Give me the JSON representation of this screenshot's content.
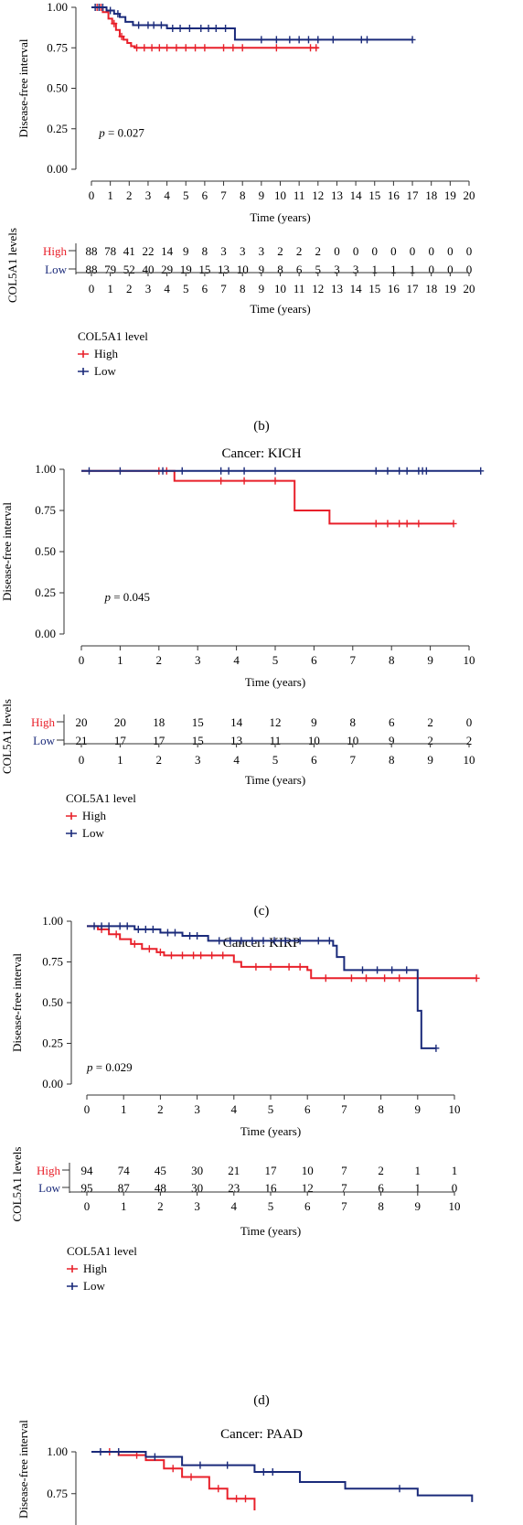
{
  "colors": {
    "high": "#e8202a",
    "low": "#1a2a7a",
    "axis": "#333333"
  },
  "panel_labels": [
    "(b)",
    "(c)",
    "(d)"
  ],
  "chart_data": [
    {
      "type": "line",
      "title": "",
      "panel_label": "(b)",
      "ylabel": "Disease-free interval",
      "xlabel": "Time (years)",
      "yticks": [
        "0.00",
        "0.25",
        "0.50",
        "0.75",
        "1.00"
      ],
      "xticks": [
        0,
        1,
        2,
        3,
        4,
        5,
        6,
        7,
        8,
        9,
        10,
        11,
        12,
        13,
        14,
        15,
        16,
        17,
        18,
        19,
        20
      ],
      "xlim": [
        0,
        20
      ],
      "ylim": [
        0,
        1
      ],
      "p_value": "= 0.027",
      "series": [
        {
          "name": "High",
          "steps": [
            [
              0,
              1.0
            ],
            [
              0.6,
              0.97
            ],
            [
              0.9,
              0.93
            ],
            [
              1.1,
              0.9
            ],
            [
              1.3,
              0.86
            ],
            [
              1.5,
              0.82
            ],
            [
              1.7,
              0.8
            ],
            [
              1.9,
              0.78
            ],
            [
              2.1,
              0.76
            ],
            [
              2.3,
              0.75
            ],
            [
              12.0,
              0.75
            ]
          ],
          "censor": [
            0.3,
            0.5,
            1.2,
            1.6,
            2.4,
            2.8,
            3.2,
            3.6,
            4.0,
            4.5,
            5.0,
            5.5,
            6.0,
            7.0,
            7.5,
            8.0,
            9.8,
            11.6,
            11.9
          ]
        },
        {
          "name": "Low",
          "steps": [
            [
              0,
              1.0
            ],
            [
              0.8,
              0.98
            ],
            [
              1.2,
              0.96
            ],
            [
              1.5,
              0.94
            ],
            [
              1.8,
              0.91
            ],
            [
              2.2,
              0.89
            ],
            [
              4.0,
              0.87
            ],
            [
              7.6,
              0.8
            ],
            [
              17.0,
              0.8
            ]
          ],
          "censor": [
            0.2,
            0.4,
            0.6,
            1.0,
            1.4,
            2.5,
            3.0,
            3.3,
            3.7,
            4.3,
            4.7,
            5.2,
            5.8,
            6.2,
            6.6,
            7.1,
            9.0,
            9.8,
            10.5,
            11.0,
            11.5,
            12.0,
            12.8,
            14.3,
            14.6,
            17.0
          ]
        }
      ],
      "risk_table": {
        "ylabel": "COL5A1 levels",
        "xlabel": "Time (years)",
        "rows": [
          {
            "label": "High",
            "values": [
              "88",
              "78",
              "41",
              "22",
              "14",
              "9",
              "8",
              "3",
              "3",
              "3",
              "2",
              "2",
              "2",
              "0",
              "0",
              "0",
              "0",
              "0",
              "0",
              "0",
              "0"
            ]
          },
          {
            "label": "Low",
            "values": [
              "88",
              "79",
              "52",
              "40",
              "29",
              "19",
              "15",
              "13",
              "10",
              "9",
              "8",
              "6",
              "5",
              "3",
              "3",
              "1",
              "1",
              "1",
              "0",
              "0",
              "0"
            ]
          }
        ]
      },
      "legend": {
        "title": "COL5A1 level",
        "items": [
          "High",
          "Low"
        ]
      }
    },
    {
      "type": "line",
      "title": "Cancer: KICH",
      "panel_label": "(c)",
      "ylabel": "Disease-free interval",
      "xlabel": "Time (years)",
      "yticks": [
        "0.00",
        "0.25",
        "0.50",
        "0.75",
        "1.00"
      ],
      "xticks": [
        0,
        1,
        2,
        3,
        4,
        5,
        6,
        7,
        8,
        9,
        10
      ],
      "xlim": [
        0,
        10
      ],
      "ylim": [
        0,
        1
      ],
      "p_value": "= 0.045",
      "series": [
        {
          "name": "High",
          "steps": [
            [
              0,
              0.99
            ],
            [
              2.4,
              0.93
            ],
            [
              5.5,
              0.75
            ],
            [
              6.4,
              0.67
            ],
            [
              9.6,
              0.67
            ]
          ],
          "censor": [
            2.0,
            2.2,
            3.6,
            4.2,
            5.0,
            7.6,
            7.9,
            8.2,
            8.4,
            8.7,
            9.6
          ]
        },
        {
          "name": "Low",
          "steps": [
            [
              0,
              0.99
            ],
            [
              10.3,
              0.99
            ]
          ],
          "censor": [
            0.2,
            1.0,
            2.1,
            2.6,
            3.6,
            3.8,
            4.2,
            5.0,
            7.6,
            7.9,
            8.2,
            8.4,
            8.7,
            8.8,
            8.9,
            10.3
          ]
        }
      ],
      "risk_table": {
        "ylabel": "COL5A1 levels",
        "xlabel": "Time (years)",
        "rows": [
          {
            "label": "High",
            "values": [
              "20",
              "20",
              "18",
              "15",
              "14",
              "12",
              "9",
              "8",
              "6",
              "2",
              "0"
            ]
          },
          {
            "label": "Low",
            "values": [
              "21",
              "17",
              "17",
              "15",
              "13",
              "11",
              "10",
              "10",
              "9",
              "2",
              "2"
            ]
          }
        ]
      },
      "legend": {
        "title": "COL5A1 level",
        "items": [
          "High",
          "Low"
        ]
      }
    },
    {
      "type": "line",
      "title": "Cancer: KIRP",
      "panel_label": "(d)",
      "ylabel": "Disease-free interval",
      "xlabel": "Time (years)",
      "yticks": [
        "0.00",
        "0.25",
        "0.50",
        "0.75",
        "1.00"
      ],
      "xticks": [
        0,
        1,
        2,
        3,
        4,
        5,
        6,
        7,
        8,
        9,
        10
      ],
      "xlim": [
        0,
        10
      ],
      "ylim": [
        0,
        1
      ],
      "p_value": "= 0.029",
      "series": [
        {
          "name": "High",
          "steps": [
            [
              0,
              0.97
            ],
            [
              0.3,
              0.95
            ],
            [
              0.6,
              0.92
            ],
            [
              0.9,
              0.89
            ],
            [
              1.2,
              0.86
            ],
            [
              1.5,
              0.83
            ],
            [
              1.9,
              0.81
            ],
            [
              2.1,
              0.79
            ],
            [
              4.0,
              0.75
            ],
            [
              4.2,
              0.72
            ],
            [
              6.0,
              0.7
            ],
            [
              6.1,
              0.65
            ],
            [
              10.6,
              0.65
            ]
          ],
          "censor": [
            0.4,
            0.8,
            1.3,
            1.7,
            2.0,
            2.3,
            2.6,
            2.9,
            3.1,
            3.4,
            3.7,
            4.6,
            5.0,
            5.5,
            5.8,
            6.5,
            7.2,
            7.6,
            8.1,
            8.5,
            9.0,
            10.6
          ]
        },
        {
          "name": "Low",
          "steps": [
            [
              0,
              0.97
            ],
            [
              1.3,
              0.95
            ],
            [
              2.0,
              0.93
            ],
            [
              2.6,
              0.91
            ],
            [
              3.3,
              0.88
            ],
            [
              6.7,
              0.85
            ],
            [
              6.8,
              0.78
            ],
            [
              7.0,
              0.7
            ],
            [
              8.9,
              0.7
            ],
            [
              9.0,
              0.45
            ],
            [
              9.1,
              0.22
            ],
            [
              9.5,
              0.22
            ]
          ],
          "censor": [
            0.2,
            0.4,
            0.6,
            0.9,
            1.1,
            1.4,
            1.6,
            1.8,
            2.2,
            2.4,
            2.8,
            3.0,
            3.6,
            3.9,
            4.2,
            4.5,
            4.8,
            5.1,
            5.4,
            5.8,
            6.3,
            6.6,
            7.5,
            7.9,
            8.3,
            8.7,
            9.5
          ]
        }
      ],
      "risk_table": {
        "ylabel": "COL5A1 levels",
        "xlabel": "Time (years)",
        "rows": [
          {
            "label": "High",
            "values": [
              "94",
              "74",
              "45",
              "30",
              "21",
              "17",
              "10",
              "7",
              "2",
              "1",
              "1"
            ]
          },
          {
            "label": "Low",
            "values": [
              "95",
              "87",
              "48",
              "30",
              "23",
              "16",
              "12",
              "7",
              "6",
              "1",
              "0"
            ]
          }
        ]
      },
      "legend": {
        "title": "COL5A1 level",
        "items": [
          "High",
          "Low"
        ]
      }
    },
    {
      "type": "line",
      "title": "Cancer: PAAD",
      "panel_label": "",
      "ylabel": "Disease-free interval",
      "yticks": [
        "0.75",
        "1.00"
      ],
      "ylim": [
        0,
        1
      ],
      "series": [
        {
          "name": "High",
          "steps": [
            [
              0,
              1.0
            ],
            [
              0.3,
              0.98
            ],
            [
              0.6,
              0.95
            ],
            [
              0.8,
              0.9
            ],
            [
              1.0,
              0.85
            ],
            [
              1.3,
              0.78
            ],
            [
              1.5,
              0.72
            ],
            [
              1.8,
              0.65
            ]
          ],
          "censor": [
            0.2,
            0.5,
            0.9,
            1.1,
            1.4,
            1.6,
            1.7
          ]
        },
        {
          "name": "Low",
          "steps": [
            [
              0,
              1.0
            ],
            [
              0.6,
              0.97
            ],
            [
              1.0,
              0.92
            ],
            [
              1.8,
              0.88
            ],
            [
              2.3,
              0.82
            ],
            [
              2.8,
              0.78
            ],
            [
              3.6,
              0.74
            ],
            [
              4.2,
              0.7
            ]
          ],
          "censor": [
            0.1,
            0.3,
            0.7,
            1.2,
            1.5,
            1.9,
            2.0,
            3.4
          ]
        }
      ]
    }
  ]
}
